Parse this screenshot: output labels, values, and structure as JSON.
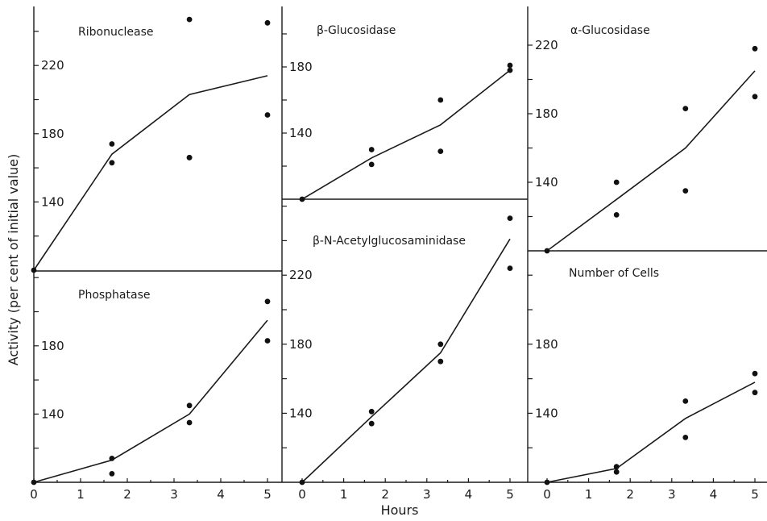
{
  "chart_data": {
    "type": "scatter",
    "xlabel": "Hours",
    "ylabel": "Activity (per cent of initial value)",
    "x_ticks": [
      "0",
      "1",
      "2",
      "3",
      "4",
      "5"
    ],
    "panels": [
      {
        "id": "ribonuclease",
        "title": "Ribonuclease",
        "col": 0,
        "row": "top",
        "y_ticks": [
          140,
          180,
          220
        ],
        "points": [
          [
            0,
            100
          ],
          [
            1.67,
            174
          ],
          [
            1.67,
            163
          ],
          [
            3.33,
            166
          ],
          [
            3.33,
            166
          ],
          [
            3.33,
            247
          ],
          [
            5,
            245
          ],
          [
            5,
            191
          ]
        ],
        "line": [
          [
            0,
            100
          ],
          [
            1.67,
            168
          ],
          [
            3.33,
            203
          ],
          [
            5,
            214
          ]
        ]
      },
      {
        "id": "phosphatase",
        "title": "Phosphatase",
        "col": 0,
        "row": "bottom",
        "y_ticks": [
          140,
          180
        ],
        "points": [
          [
            0,
            100
          ],
          [
            1.67,
            114
          ],
          [
            1.67,
            105
          ],
          [
            3.33,
            145
          ],
          [
            3.33,
            135
          ],
          [
            5,
            206
          ],
          [
            5,
            183
          ]
        ],
        "line": [
          [
            0,
            100
          ],
          [
            1.67,
            113
          ],
          [
            3.33,
            140
          ],
          [
            5,
            195
          ]
        ]
      },
      {
        "id": "beta-glucosidase",
        "title": "β-Glucosidase",
        "col": 1,
        "row": "top",
        "y_ticks": [
          140,
          180
        ],
        "points": [
          [
            0,
            100
          ],
          [
            1.67,
            130
          ],
          [
            1.67,
            121
          ],
          [
            3.33,
            160
          ],
          [
            3.33,
            129
          ],
          [
            5,
            181
          ],
          [
            5,
            178
          ]
        ],
        "line": [
          [
            0,
            100
          ],
          [
            1.67,
            125
          ],
          [
            3.33,
            145
          ],
          [
            5,
            178
          ]
        ]
      },
      {
        "id": "beta-n-acetylglucosaminidase",
        "title": "β-N-Acetylglucosaminidase",
        "col": 1,
        "row": "bottom",
        "y_ticks": [
          140,
          180,
          220
        ],
        "points": [
          [
            0,
            100
          ],
          [
            1.67,
            141
          ],
          [
            1.67,
            134
          ],
          [
            3.33,
            180
          ],
          [
            3.33,
            170
          ],
          [
            5,
            253
          ],
          [
            5,
            224
          ]
        ],
        "line": [
          [
            0,
            100
          ],
          [
            1.67,
            138
          ],
          [
            3.33,
            175
          ],
          [
            5,
            241
          ]
        ]
      },
      {
        "id": "alpha-glucosidase",
        "title": "α-Glucosidase",
        "col": 2,
        "row": "top",
        "y_ticks": [
          140,
          180,
          220
        ],
        "points": [
          [
            0,
            100
          ],
          [
            1.67,
            140
          ],
          [
            1.67,
            121
          ],
          [
            3.33,
            183
          ],
          [
            3.33,
            135
          ],
          [
            5,
            218
          ],
          [
            5,
            190
          ]
        ],
        "line": [
          [
            0,
            100
          ],
          [
            1.67,
            130
          ],
          [
            3.33,
            160
          ],
          [
            5,
            205
          ]
        ]
      },
      {
        "id": "number-of-cells",
        "title": "Number of Cells",
        "col": 2,
        "row": "bottom",
        "y_ticks": [
          140,
          180
        ],
        "points": [
          [
            0,
            100
          ],
          [
            1.67,
            109
          ],
          [
            1.67,
            106
          ],
          [
            3.33,
            147
          ],
          [
            3.33,
            126
          ],
          [
            5,
            163
          ],
          [
            5,
            152
          ]
        ],
        "line": [
          [
            0,
            100
          ],
          [
            1.67,
            108
          ],
          [
            3.33,
            137
          ],
          [
            5,
            158
          ]
        ]
      }
    ]
  }
}
